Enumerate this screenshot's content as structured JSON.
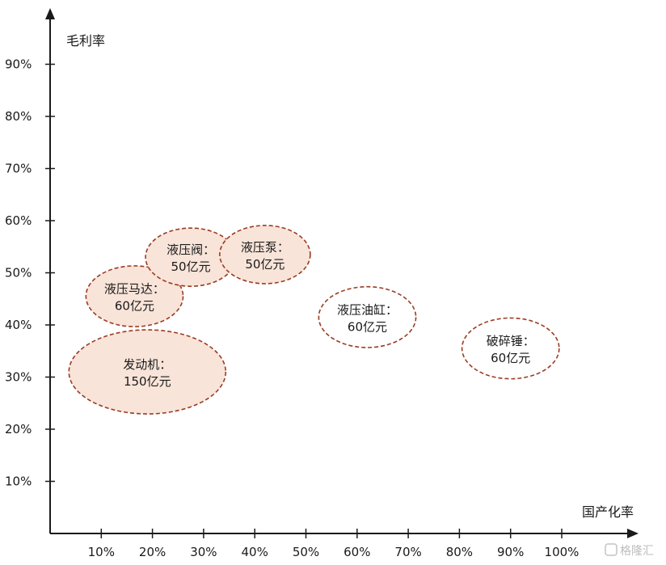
{
  "chart_data": {
    "type": "scatter",
    "title": "",
    "xlabel": "国产化率",
    "ylabel": "毛利率",
    "xlim": [
      0,
      110
    ],
    "ylim": [
      0,
      100
    ],
    "x_ticks": [
      10,
      20,
      30,
      40,
      50,
      60,
      70,
      80,
      90,
      100
    ],
    "x_tick_labels": [
      "10%",
      "20%",
      "30%",
      "40%",
      "50%",
      "60%",
      "70%",
      "80%",
      "90%",
      "100%"
    ],
    "y_ticks": [
      10,
      20,
      30,
      40,
      50,
      60,
      70,
      80,
      90
    ],
    "y_tick_labels": [
      "10%",
      "20%",
      "30%",
      "40%",
      "50%",
      "60%",
      "70%",
      "80%",
      "90%"
    ],
    "grid": false,
    "points": [
      {
        "line1": "发动机：",
        "line2": "150亿元",
        "x": 19,
        "y": 31,
        "market_size": 150,
        "filled": true
      },
      {
        "line1": "液压马达：",
        "line2": "60亿元",
        "x": 16.5,
        "y": 45.5,
        "market_size": 60,
        "filled": true
      },
      {
        "line1": "液压阀：",
        "line2": "50亿元",
        "x": 27.5,
        "y": 53,
        "market_size": 50,
        "filled": true
      },
      {
        "line1": "液压泵：",
        "line2": "50亿元",
        "x": 42,
        "y": 53.5,
        "market_size": 50,
        "filled": true
      },
      {
        "line1": "液压油缸：",
        "line2": "60亿元",
        "x": 62,
        "y": 41.5,
        "market_size": 60,
        "filled": false
      },
      {
        "line1": "破碎锤：",
        "line2": "60亿元",
        "x": 90,
        "y": 35.5,
        "market_size": 60,
        "filled": false
      }
    ],
    "colors": {
      "fill": "#f8e4d9",
      "stroke": "#9c3b22",
      "axis": "#1a1a1a"
    }
  },
  "watermark": "格隆汇"
}
